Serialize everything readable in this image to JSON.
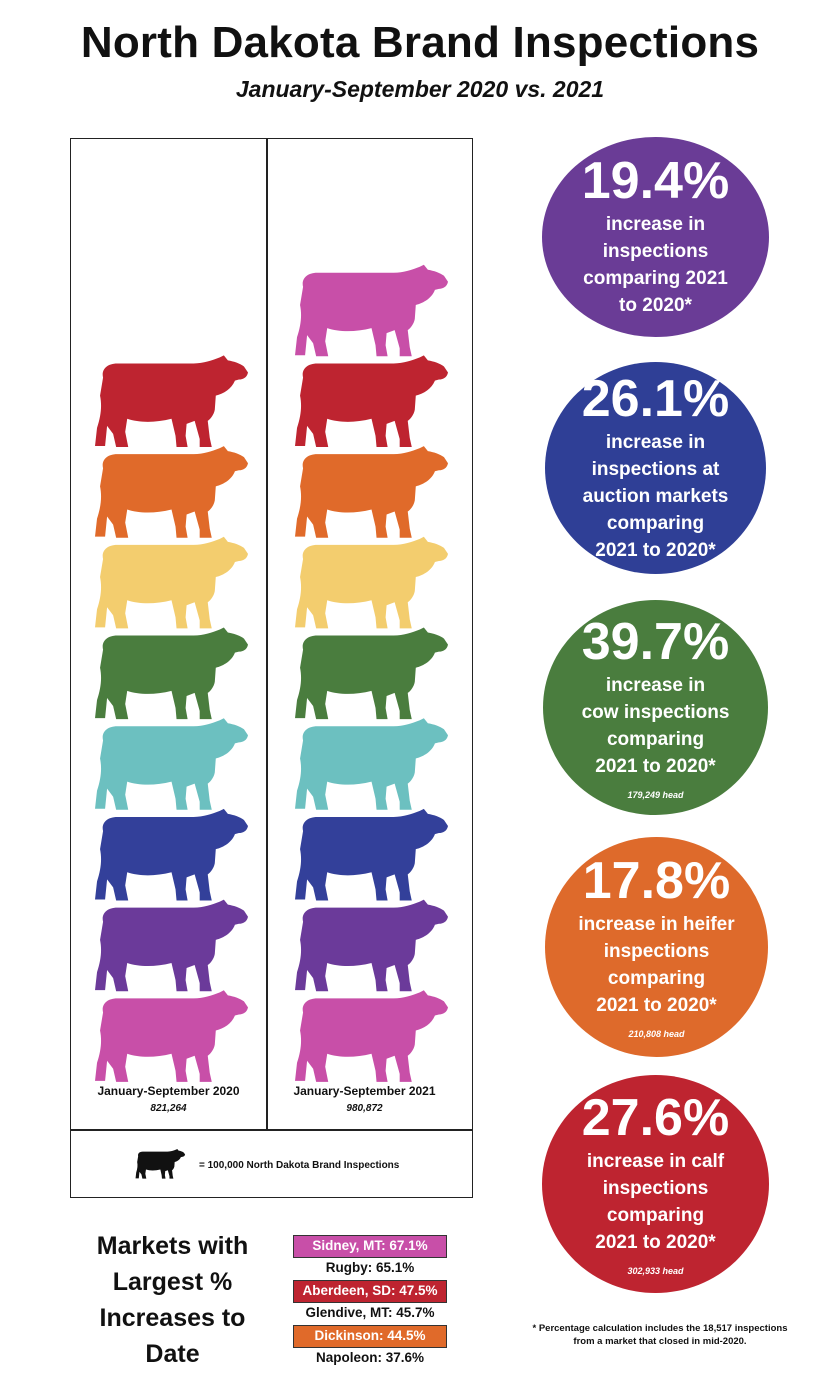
{
  "header": {
    "title": "North Dakota Brand Inspections",
    "subtitle": "January-September 2020 vs. 2021"
  },
  "chart_data": {
    "type": "pictograph",
    "unit_value": 100000,
    "unit_label": "= 100,000 North Dakota Brand Inspections",
    "series": [
      {
        "name": "January-September 2020",
        "value": 821264,
        "label": "821,264"
      },
      {
        "name": "January-September 2021",
        "value": 980872,
        "label": "980,872"
      }
    ],
    "icon_colors_bottom_up": [
      "#c84fa8",
      "#6b3a9a",
      "#33409a",
      "#6cc0c0",
      "#4a7d3e",
      "#f3cd6e",
      "#e06a2a",
      "#be2430",
      "#c84fa8",
      "#6b3a9a"
    ]
  },
  "stats": [
    {
      "pct": "19.4%",
      "lines": [
        "increase in",
        "inspections",
        "comparing 2021",
        "to 2020*"
      ],
      "head": "",
      "color": "#6a3c96"
    },
    {
      "pct": "26.1%",
      "lines": [
        "increase in",
        "inspections at",
        "auction markets",
        "comparing",
        "2021 to 2020*"
      ],
      "head": "",
      "color": "#2f3f96"
    },
    {
      "pct": "39.7%",
      "lines": [
        "increase in",
        "cow inspections",
        "comparing",
        "2021 to 2020*"
      ],
      "head": "179,249 head",
      "color": "#4a7d3e"
    },
    {
      "pct": "17.8%",
      "lines": [
        "increase in heifer",
        "inspections",
        "comparing",
        "2021 to 2020*"
      ],
      "head": "210,808 head",
      "color": "#de6a2b"
    },
    {
      "pct": "27.6%",
      "lines": [
        "increase in calf",
        "inspections",
        "comparing",
        "2021 to 2020*"
      ],
      "head": "302,933 head",
      "color": "#be2430"
    }
  ],
  "markets": {
    "title": "Markets with Largest % Increases to Date",
    "items": [
      {
        "label": "Sidney, MT: 67.1%",
        "color": "#c84fa8"
      },
      {
        "label": "Rugby: 65.1%",
        "color": ""
      },
      {
        "label": "Aberdeen, SD: 47.5%",
        "color": "#be2430"
      },
      {
        "label": "Glendive, MT: 45.7%",
        "color": ""
      },
      {
        "label": "Dickinson: 44.5%",
        "color": "#e06a2a"
      },
      {
        "label": "Napoleon: 37.6%",
        "color": ""
      }
    ]
  },
  "footnote": "* Percentage calculation includes the 18,517 inspections from a market that closed in mid-2020."
}
